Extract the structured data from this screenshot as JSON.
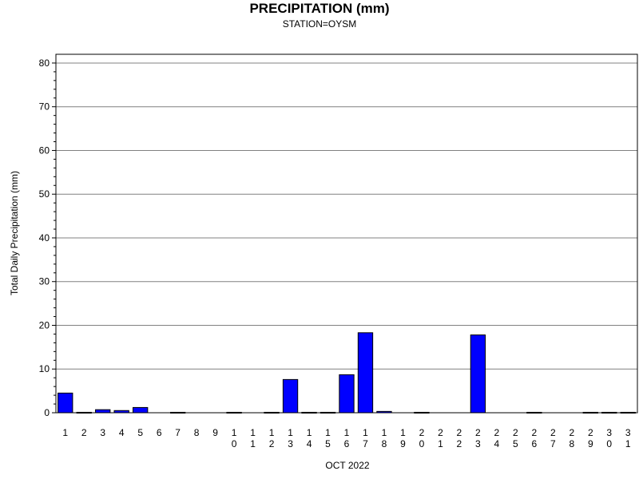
{
  "chart_data": {
    "type": "bar",
    "title": "PRECIPITATION (mm)",
    "subtitle": "STATION=OYSM",
    "xlabel": "OCT 2022",
    "ylabel": "Total Daily Precipitation (mm)",
    "ylim": [
      0,
      82
    ],
    "yticks": [
      0,
      10,
      20,
      30,
      40,
      50,
      60,
      70,
      80
    ],
    "grid": true,
    "categories": [
      "1",
      "2",
      "3",
      "4",
      "5",
      "6",
      "7",
      "8",
      "9",
      "10",
      "11",
      "12",
      "13",
      "14",
      "15",
      "16",
      "17",
      "18",
      "19",
      "20",
      "21",
      "22",
      "23",
      "24",
      "25",
      "26",
      "27",
      "28",
      "29",
      "30",
      "31"
    ],
    "values": [
      4.5,
      0.1,
      0.7,
      0.5,
      1.2,
      0,
      0.1,
      0,
      0,
      0.1,
      0,
      0.1,
      7.6,
      0.1,
      0.1,
      8.7,
      18.3,
      0.3,
      0,
      0.1,
      0,
      0,
      17.8,
      0,
      0,
      0.1,
      0,
      0,
      0.1,
      0.1,
      0.1
    ],
    "bar_color": "#0000ff"
  }
}
